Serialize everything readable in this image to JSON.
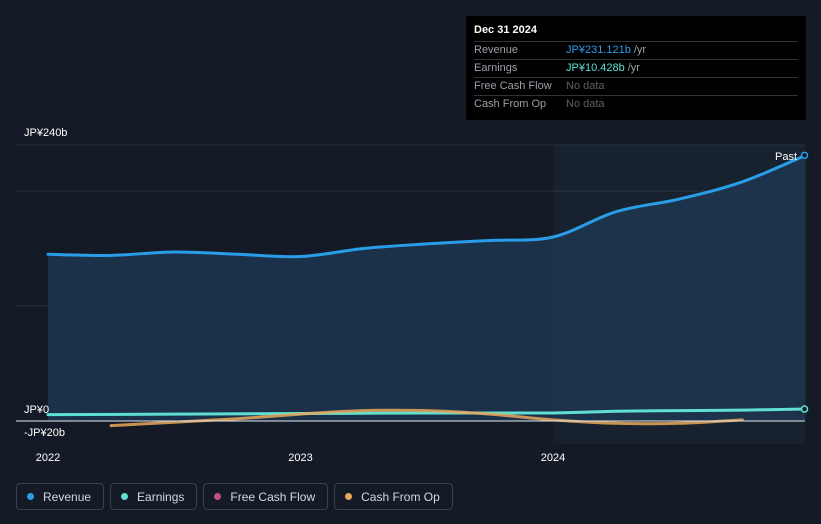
{
  "tooltip": {
    "date": "Dec 31 2024",
    "rows": [
      {
        "label": "Revenue",
        "value": "JP¥231.121b",
        "unit": "/yr",
        "color": "#2a9de8"
      },
      {
        "label": "Earnings",
        "value": "JP¥10.428b",
        "unit": "/yr",
        "color": "#5fe0d0"
      },
      {
        "label": "Free Cash Flow",
        "value": "No data",
        "unit": "",
        "color": ""
      },
      {
        "label": "Cash From Op",
        "value": "No data",
        "unit": "",
        "color": ""
      }
    ]
  },
  "past_label": "Past",
  "legend": [
    {
      "label": "Revenue",
      "color": "#2a9de8"
    },
    {
      "label": "Earnings",
      "color": "#5fe0d0"
    },
    {
      "label": "Free Cash Flow",
      "color": "#c04f8a"
    },
    {
      "label": "Cash From Op",
      "color": "#e8a85a"
    }
  ],
  "chart_data": {
    "type": "line",
    "ylim": [
      -20,
      240
    ],
    "xlim": [
      2021.9,
      2025.0
    ],
    "y_tick_labels": [
      {
        "value": 240,
        "label": "JP¥240b"
      },
      {
        "value": 0,
        "label": "JP¥0"
      },
      {
        "value": -20,
        "label": "-JP¥20b"
      }
    ],
    "x_tick_labels": [
      {
        "value": 2022.0,
        "label": "2022"
      },
      {
        "value": 2023.0,
        "label": "2023"
      },
      {
        "value": 2024.0,
        "label": "2024"
      }
    ],
    "highlight_start": 2024.0,
    "series": [
      {
        "name": "Revenue",
        "color": "#2a9de8",
        "area": true,
        "points": [
          [
            2022.0,
            145
          ],
          [
            2022.25,
            144
          ],
          [
            2022.5,
            147
          ],
          [
            2022.75,
            145
          ],
          [
            2023.0,
            143
          ],
          [
            2023.25,
            150
          ],
          [
            2023.5,
            154
          ],
          [
            2023.75,
            157
          ],
          [
            2024.0,
            160
          ],
          [
            2024.25,
            182
          ],
          [
            2024.5,
            193
          ],
          [
            2024.75,
            208
          ],
          [
            2025.0,
            231
          ]
        ]
      },
      {
        "name": "Earnings",
        "color": "#5fe0d0",
        "area": false,
        "points": [
          [
            2022.0,
            5.5
          ],
          [
            2022.5,
            6
          ],
          [
            2023.0,
            6.5
          ],
          [
            2023.5,
            7
          ],
          [
            2024.0,
            7
          ],
          [
            2024.25,
            8.5
          ],
          [
            2024.5,
            9
          ],
          [
            2024.75,
            9.5
          ],
          [
            2025.0,
            10.4
          ]
        ]
      },
      {
        "name": "Cash From Op",
        "color": "#e8a85a",
        "area": false,
        "points": [
          [
            2022.25,
            -4
          ],
          [
            2022.75,
            2
          ],
          [
            2023.0,
            6
          ],
          [
            2023.25,
            9
          ],
          [
            2023.5,
            9
          ],
          [
            2023.75,
            6
          ],
          [
            2024.0,
            1
          ],
          [
            2024.25,
            -2
          ],
          [
            2024.5,
            -2
          ],
          [
            2024.75,
            1
          ]
        ]
      }
    ]
  }
}
